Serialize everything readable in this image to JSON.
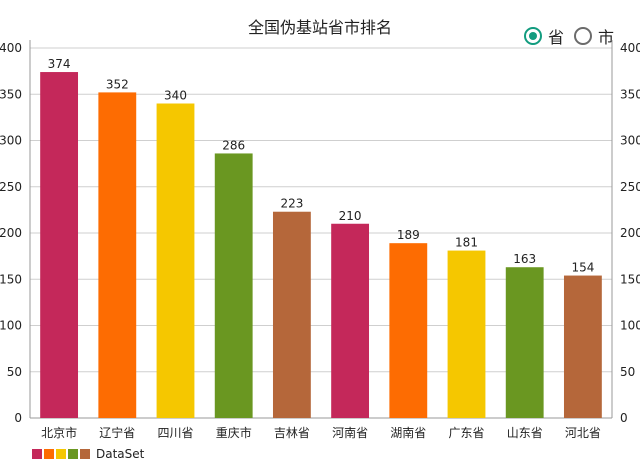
{
  "chart_data": {
    "type": "bar",
    "title": "全国伪基站省市排名",
    "categories": [
      "北京市",
      "辽宁省",
      "四川省",
      "重庆市",
      "吉林省",
      "河南省",
      "湖南省",
      "广东省",
      "山东省",
      "河北省"
    ],
    "series": [
      {
        "name": "DataSet",
        "values": [
          374,
          352,
          340,
          286,
          223,
          210,
          189,
          181,
          163,
          154
        ]
      }
    ],
    "bar_colors": [
      "#c4285a",
      "#fd6c02",
      "#f5c700",
      "#6a9721",
      "#b5673a",
      "#c4285a",
      "#fd6c02",
      "#f5c700",
      "#6a9721",
      "#b5673a"
    ],
    "yticks": [
      0,
      50,
      100,
      150,
      200,
      250,
      300,
      350,
      400
    ],
    "ylim": [
      0,
      400
    ],
    "grid": true,
    "legend_position": "bottom-left",
    "show_values": true
  },
  "toggle": {
    "options": [
      {
        "label": "省",
        "checked": true
      },
      {
        "label": "市",
        "checked": false
      }
    ],
    "accent_color": "#129c7f"
  },
  "legend": {
    "label": "DataSet",
    "colors": [
      "#c4285a",
      "#fd6c02",
      "#f5c700",
      "#6a9721",
      "#b5673a"
    ]
  }
}
